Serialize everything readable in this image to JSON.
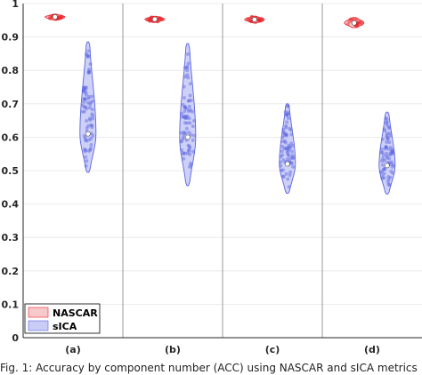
{
  "chart_data": {
    "type": "violin",
    "categories": [
      "(a)",
      "(b)",
      "(c)",
      "(d)"
    ],
    "ylim": [
      0,
      1
    ],
    "yticks": [
      "0",
      "0.1",
      "0.2",
      "0.3",
      "0.4",
      "0.5",
      "0.6",
      "0.7",
      "0.8",
      "0.9",
      "1"
    ],
    "grid": "y",
    "legend_position": "bottom-left",
    "series": [
      {
        "name": "NASCAR",
        "color": "#e8242b",
        "fill": "#f8c9cb",
        "distributions": [
          {
            "min": 0.95,
            "max": 0.968,
            "median": 0.96
          },
          {
            "min": 0.944,
            "max": 0.962,
            "median": 0.953
          },
          {
            "min": 0.942,
            "max": 0.962,
            "median": 0.952
          },
          {
            "min": 0.928,
            "max": 0.958,
            "median": 0.942
          }
        ]
      },
      {
        "name": "sICA",
        "color": "#5a63e0",
        "fill": "#c9ccf6",
        "distributions": [
          {
            "min": 0.495,
            "max": 0.885,
            "median": 0.61
          },
          {
            "min": 0.455,
            "max": 0.88,
            "median": 0.6
          },
          {
            "min": 0.432,
            "max": 0.7,
            "median": 0.52
          },
          {
            "min": 0.43,
            "max": 0.675,
            "median": 0.515
          }
        ]
      }
    ]
  },
  "caption": "Fig. 1: Accuracy by component number (ACC) using NASCAR and sICA metrics"
}
